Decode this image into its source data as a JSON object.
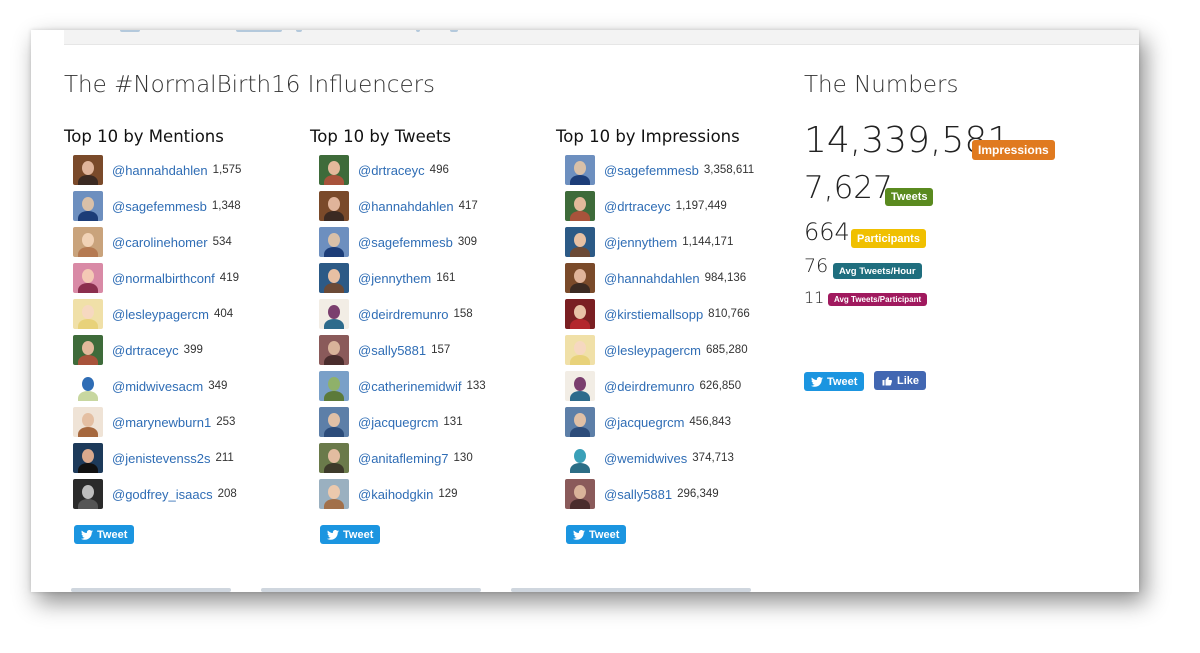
{
  "influencers": {
    "title": "The #NormalBirth16 Influencers",
    "columns": [
      {
        "heading": "Top 10 by Mentions",
        "items": [
          {
            "handle": "@hannahdahlen",
            "value": "1,575",
            "bg": "#7a4a2a",
            "face": "#e0b49a",
            "body": "#3b2a22"
          },
          {
            "handle": "@sagefemmesb",
            "value": "1,348",
            "bg": "#6d8fbf",
            "face": "#d9c0a8",
            "body": "#1c3d78"
          },
          {
            "handle": "@carolinehomer",
            "value": "534",
            "bg": "#c9a37c",
            "face": "#f1d2b6",
            "body": "#b57a52"
          },
          {
            "handle": "@normalbirthconf",
            "value": "419",
            "bg": "#d98aa6",
            "face": "#f4c9b5",
            "body": "#8b2f4e"
          },
          {
            "handle": "@lesleypagercm",
            "value": "404",
            "bg": "#f0e0a8",
            "face": "#f6d8c0",
            "body": "#e8d27a"
          },
          {
            "handle": "@drtraceyc",
            "value": "399",
            "bg": "#3e6b3a",
            "face": "#e3b99b",
            "body": "#a8533b"
          },
          {
            "handle": "@midwivesacm",
            "value": "349",
            "bg": "#ffffff",
            "face": "#2f6db5",
            "body": "#c8d7a0"
          },
          {
            "handle": "@marynewburn1",
            "value": "253",
            "bg": "#efe3d6",
            "face": "#e4bfa2",
            "body": "#a6683e"
          },
          {
            "handle": "@jenistevenss2s",
            "value": "211",
            "bg": "#1d3a5a",
            "face": "#d9a98d",
            "body": "#111111"
          },
          {
            "handle": "@godfrey_isaacs",
            "value": "208",
            "bg": "#2a2a2a",
            "face": "#bdbdbd",
            "body": "#555555"
          }
        ],
        "tweet_label": "Tweet"
      },
      {
        "heading": "Top 10 by Tweets",
        "items": [
          {
            "handle": "@drtraceyc",
            "value": "496",
            "bg": "#3e6b3a",
            "face": "#e3b99b",
            "body": "#a8533b"
          },
          {
            "handle": "@hannahdahlen",
            "value": "417",
            "bg": "#7a4a2a",
            "face": "#e0b49a",
            "body": "#3b2a22"
          },
          {
            "handle": "@sagefemmesb",
            "value": "309",
            "bg": "#6d8fbf",
            "face": "#d9c0a8",
            "body": "#1c3d78"
          },
          {
            "handle": "@jennythem",
            "value": "161",
            "bg": "#2c5a86",
            "face": "#e7c0a3",
            "body": "#6b4a36"
          },
          {
            "handle": "@deirdremunro",
            "value": "158",
            "bg": "#f2ede5",
            "face": "#7b3f6e",
            "body": "#2e6b8c"
          },
          {
            "handle": "@sally5881",
            "value": "157",
            "bg": "#8a5a5a",
            "face": "#d9b39a",
            "body": "#4a2d2d"
          },
          {
            "handle": "@catherinemidwif",
            "value": "133",
            "bg": "#7aa0c8",
            "face": "#8fb16a",
            "body": "#5c7a3a"
          },
          {
            "handle": "@jacquegrcm",
            "value": "131",
            "bg": "#5d7fa8",
            "face": "#e0c0a6",
            "body": "#2c4c7a"
          },
          {
            "handle": "@anitafleming7",
            "value": "130",
            "bg": "#6a7a4a",
            "face": "#e2bca0",
            "body": "#3d3a2a"
          },
          {
            "handle": "@kaihodgkin",
            "value": "129",
            "bg": "#9ab0c0",
            "face": "#ecc9ad",
            "body": "#a2704a"
          }
        ],
        "tweet_label": "Tweet"
      },
      {
        "heading": "Top 10 by Impressions",
        "items": [
          {
            "handle": "@sagefemmesb",
            "value": "3,358,611",
            "bg": "#6d8fbf",
            "face": "#d9c0a8",
            "body": "#1c3d78"
          },
          {
            "handle": "@drtraceyc",
            "value": "1,197,449",
            "bg": "#3e6b3a",
            "face": "#e3b99b",
            "body": "#a8533b"
          },
          {
            "handle": "@jennythem",
            "value": "1,144,171",
            "bg": "#2c5a86",
            "face": "#e7c0a3",
            "body": "#6b4a36"
          },
          {
            "handle": "@hannahdahlen",
            "value": "984,136",
            "bg": "#7a4a2a",
            "face": "#e0b49a",
            "body": "#3b2a22"
          },
          {
            "handle": "@kirstiemallsopp",
            "value": "810,766",
            "bg": "#7a1f22",
            "face": "#e8c2a6",
            "body": "#b3262c"
          },
          {
            "handle": "@lesleypagercm",
            "value": "685,280",
            "bg": "#f0e0a8",
            "face": "#f6d8c0",
            "body": "#e8d27a"
          },
          {
            "handle": "@deirdremunro",
            "value": "626,850",
            "bg": "#f2ede5",
            "face": "#7b3f6e",
            "body": "#2e6b8c"
          },
          {
            "handle": "@jacquegrcm",
            "value": "456,843",
            "bg": "#5d7fa8",
            "face": "#e0c0a6",
            "body": "#2c4c7a"
          },
          {
            "handle": "@wemidwives",
            "value": "374,713",
            "bg": "#ffffff",
            "face": "#3aa0b8",
            "body": "#2b6e86"
          },
          {
            "handle": "@sally5881",
            "value": "296,349",
            "bg": "#8a5a5a",
            "face": "#d9b39a",
            "body": "#4a2d2d"
          }
        ],
        "tweet_label": "Tweet"
      }
    ]
  },
  "numbers": {
    "title": "The Numbers",
    "stats": [
      {
        "value": "14,339,581",
        "label": "Impressions",
        "color": "#e07a1f"
      },
      {
        "value": "7,627",
        "label": "Tweets",
        "color": "#5a8a1f"
      },
      {
        "value": "664",
        "label": "Participants",
        "color": "#f0c000"
      },
      {
        "value": "76",
        "label": "Avg Tweets/Hour",
        "color": "#1f6e7e"
      },
      {
        "value": "11",
        "label": "Avg Tweets/Participant",
        "color": "#a0195e"
      }
    ],
    "tweet_label": "Tweet",
    "like_label": "Like"
  },
  "colors": {
    "link": "#2f6db5",
    "twitter_blue": "#1b95e0",
    "facebook_blue": "#4267b2"
  },
  "icons": {
    "tweet": "twitter-bird-icon",
    "like": "thumbs-up-icon"
  }
}
